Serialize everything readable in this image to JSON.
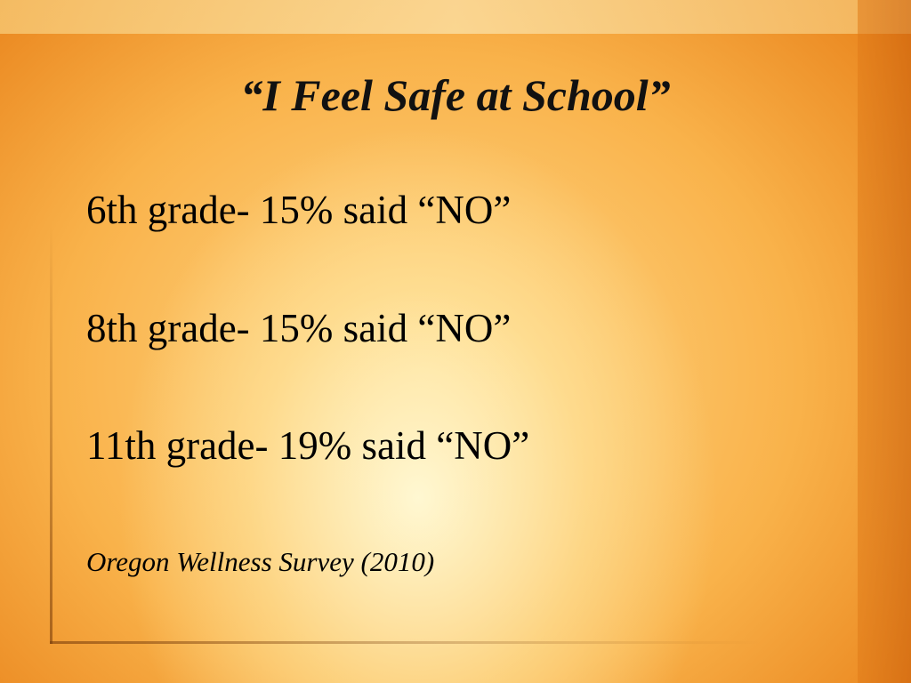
{
  "slide": {
    "title": "“I Feel Safe at School”",
    "items": [
      "6th grade- 15% said “NO”",
      "8th grade- 15% said “NO”",
      "11th grade- 19% said “NO”"
    ],
    "source": "Oregon Wellness Survey (2010)"
  }
}
